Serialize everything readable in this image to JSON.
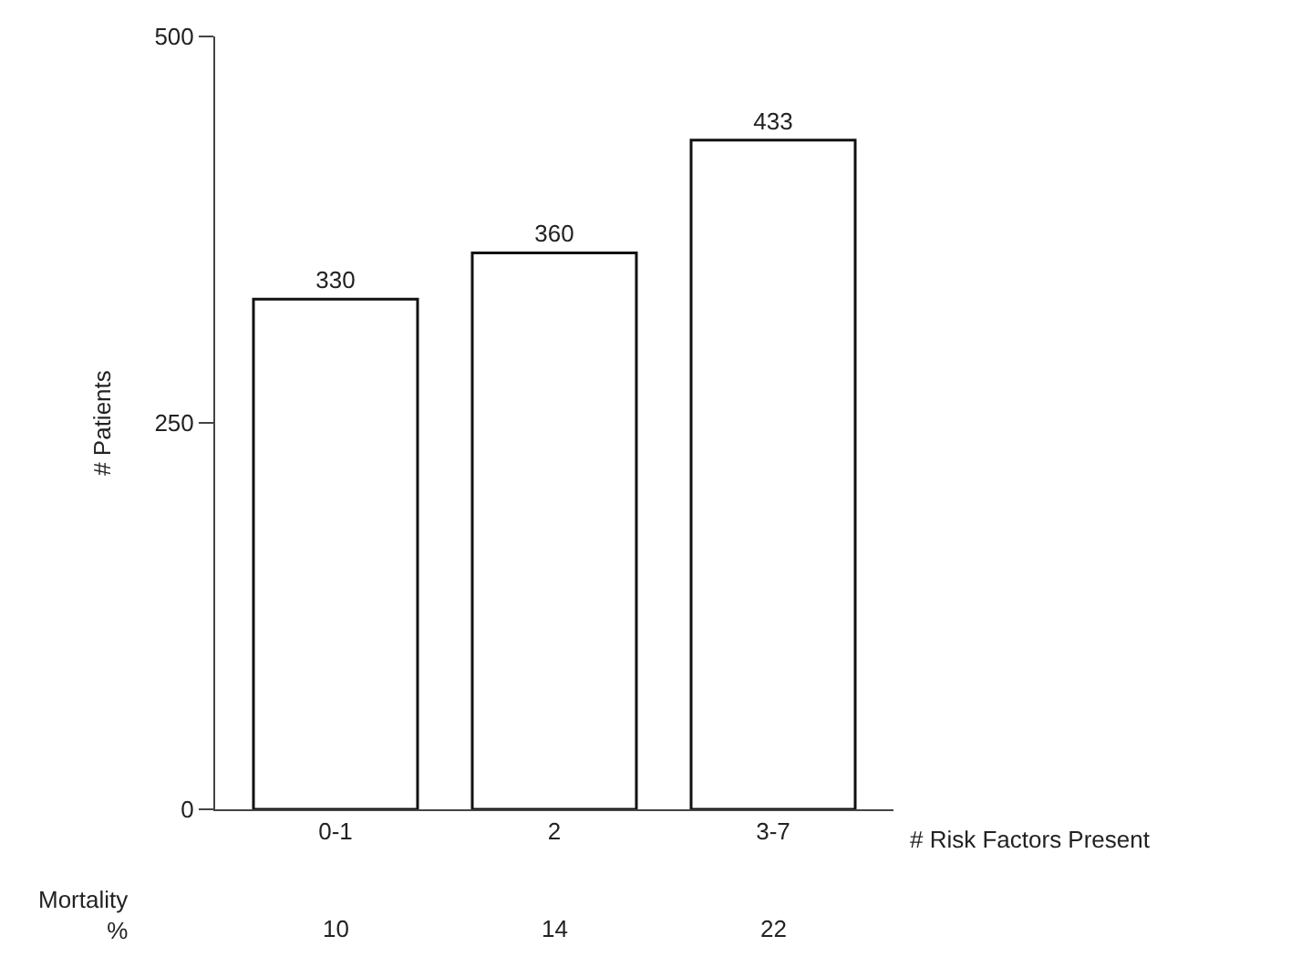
{
  "chart_data": {
    "type": "bar",
    "xlabel": "# Risk Factors Present",
    "ylabel": "# Patients",
    "categories": [
      "0-1",
      "2",
      "3-7"
    ],
    "values": [
      330,
      360,
      433
    ],
    "color": "#ffffff",
    "data_labels": true,
    "ylim": [
      0,
      500
    ],
    "yticks": [
      0,
      250,
      500
    ],
    "grid": false,
    "annotations": [
      "Mortality\n%",
      "10",
      "14",
      "22"
    ]
  }
}
